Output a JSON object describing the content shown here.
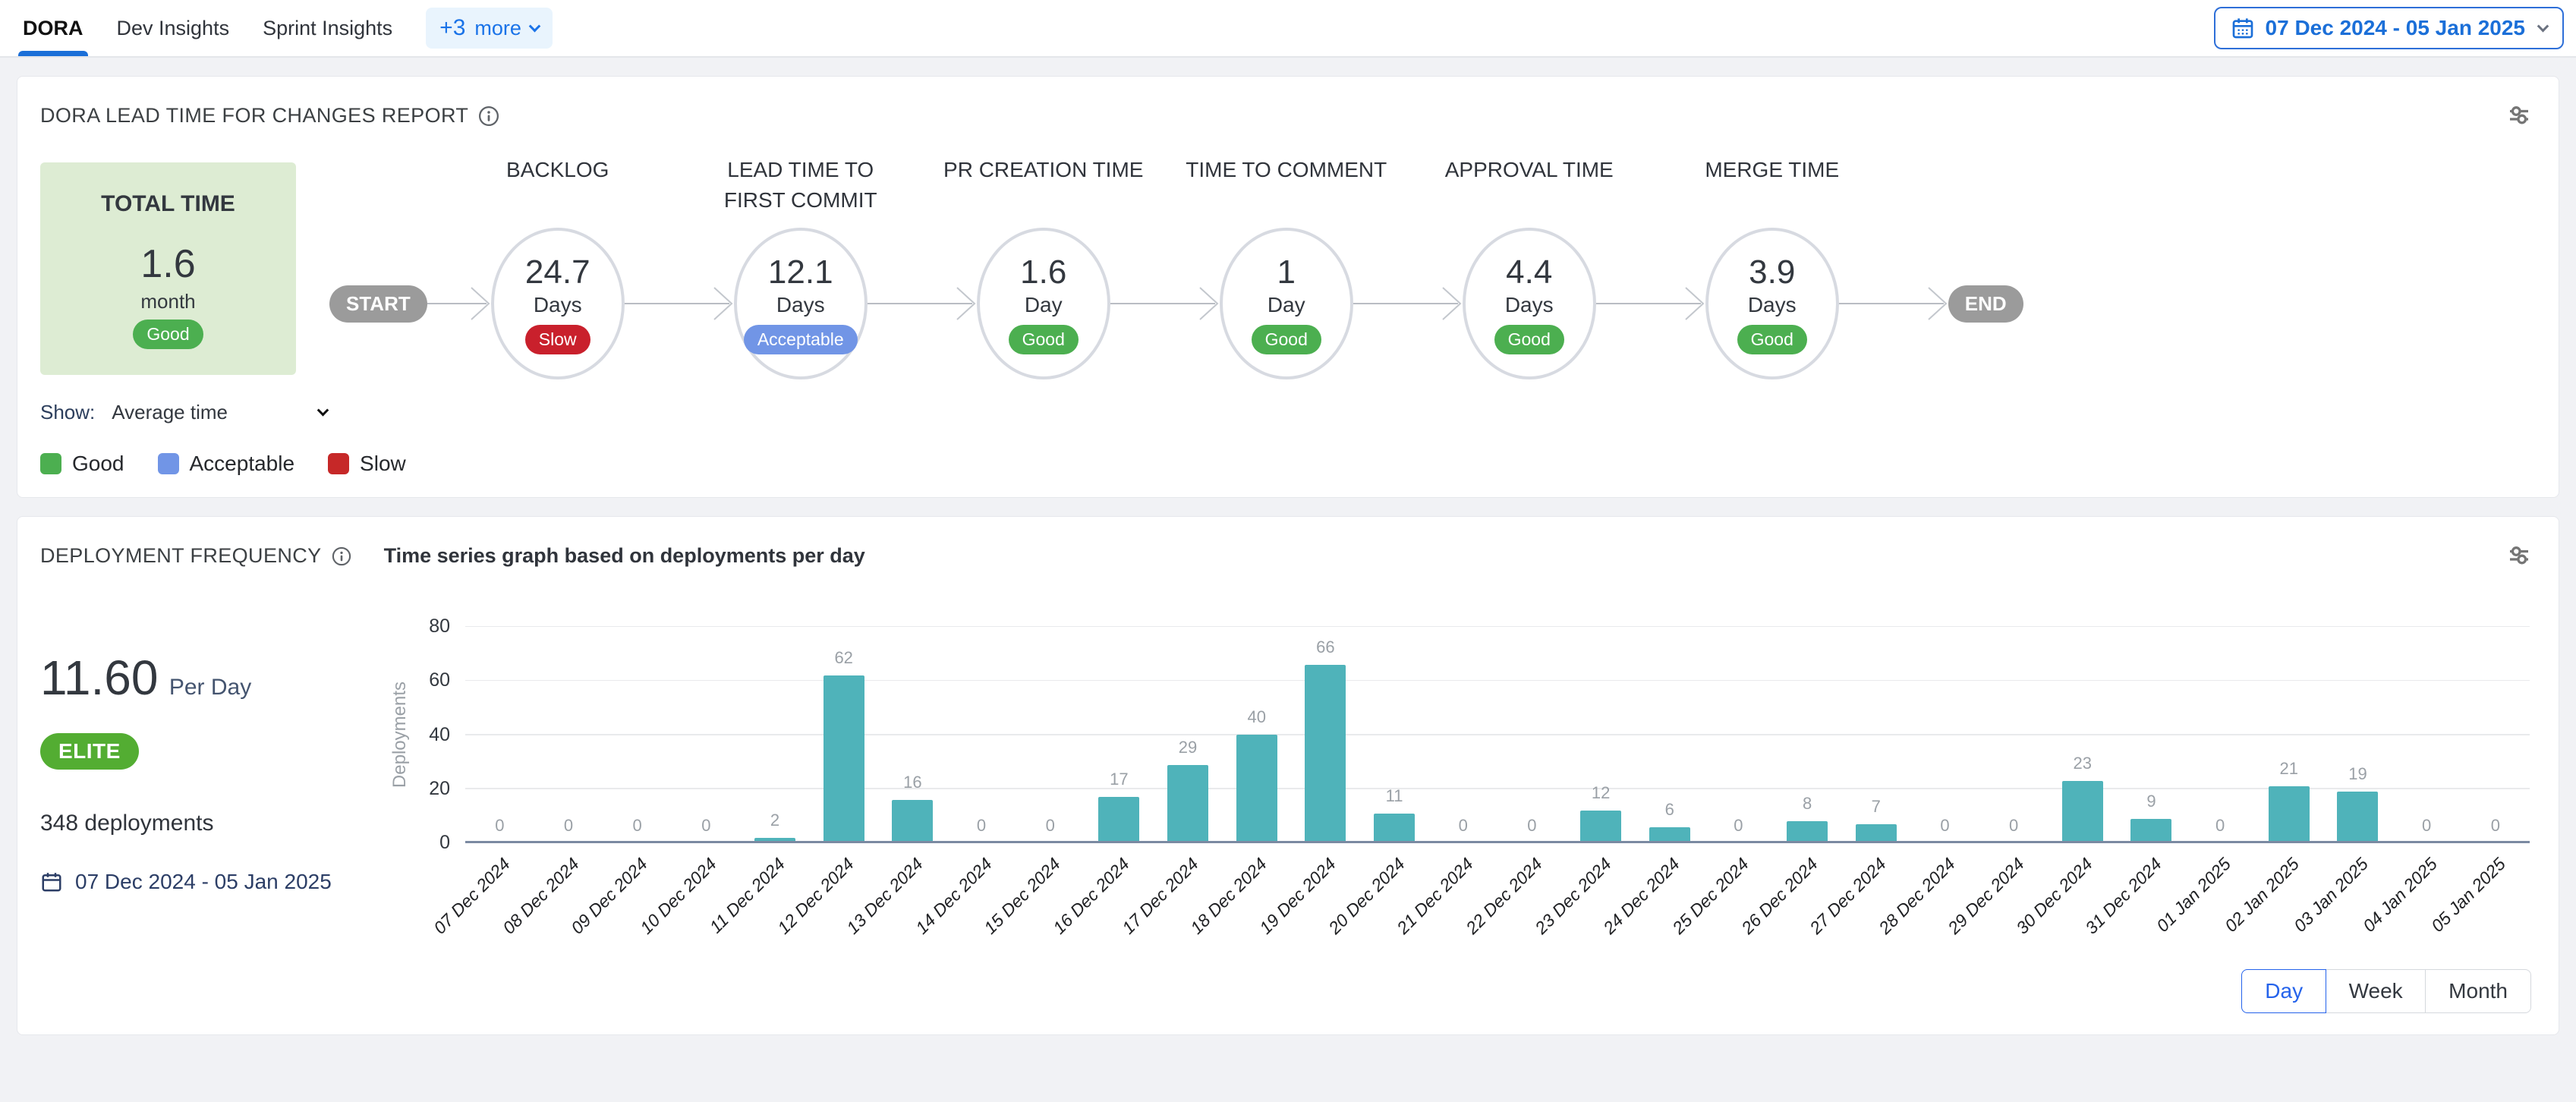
{
  "topbar": {
    "tabs": [
      {
        "label": "DORA",
        "active": true
      },
      {
        "label": "Dev Insights",
        "active": false
      },
      {
        "label": "Sprint Insights",
        "active": false
      }
    ],
    "more_label": "+3",
    "more_text": "more",
    "date_range": "07 Dec 2024 - 05 Jan 2025"
  },
  "lead_time": {
    "title": "DORA LEAD TIME FOR CHANGES REPORT",
    "total": {
      "label": "TOTAL TIME",
      "value": "1.6",
      "unit": "month",
      "status": "Good"
    },
    "start_label": "START",
    "end_label": "END",
    "stages": [
      {
        "name": "BACKLOG",
        "value": "24.7",
        "unit": "Days",
        "status": "Slow"
      },
      {
        "name": "LEAD TIME TO FIRST COMMIT",
        "value": "12.1",
        "unit": "Days",
        "status": "Acceptable"
      },
      {
        "name": "PR CREATION TIME",
        "value": "1.6",
        "unit": "Day",
        "status": "Good"
      },
      {
        "name": "TIME TO COMMENT",
        "value": "1",
        "unit": "Day",
        "status": "Good"
      },
      {
        "name": "APPROVAL TIME",
        "value": "4.4",
        "unit": "Days",
        "status": "Good"
      },
      {
        "name": "MERGE TIME",
        "value": "3.9",
        "unit": "Days",
        "status": "Good"
      }
    ],
    "show_label": "Show:",
    "show_value": "Average time",
    "legend": [
      {
        "label": "Good",
        "color": "#4caf50"
      },
      {
        "label": "Acceptable",
        "color": "#7195e6"
      },
      {
        "label": "Slow",
        "color": "#c62828"
      }
    ],
    "status_colors": {
      "Good": "#4caf50",
      "Acceptable": "#7195e6",
      "Slow": "#c9202c"
    }
  },
  "deployment": {
    "title": "DEPLOYMENT FREQUENCY",
    "subtitle": "Time series graph based on deployments per day",
    "rate_value": "11.60",
    "rate_unit": "Per Day",
    "badge": "ELITE",
    "total_deployments": "348 deployments",
    "date_range": "07 Dec 2024 - 05 Jan 2025",
    "granularity": {
      "options": [
        "Day",
        "Week",
        "Month"
      ],
      "active": "Day"
    }
  },
  "chart_data": {
    "type": "bar",
    "title": "Time series graph based on deployments per day",
    "ylabel": "Deployments",
    "ylim": [
      0,
      80
    ],
    "yticks": [
      0,
      20,
      40,
      60,
      80
    ],
    "grid": true,
    "legend_position": "none",
    "bar_color": "#4fb3ba",
    "categories": [
      "07 Dec 2024",
      "08 Dec 2024",
      "09 Dec 2024",
      "10 Dec 2024",
      "11 Dec 2024",
      "12 Dec 2024",
      "13 Dec 2024",
      "14 Dec 2024",
      "15 Dec 2024",
      "16 Dec 2024",
      "17 Dec 2024",
      "18 Dec 2024",
      "19 Dec 2024",
      "20 Dec 2024",
      "21 Dec 2024",
      "22 Dec 2024",
      "23 Dec 2024",
      "24 Dec 2024",
      "25 Dec 2024",
      "26 Dec 2024",
      "27 Dec 2024",
      "28 Dec 2024",
      "29 Dec 2024",
      "30 Dec 2024",
      "31 Dec 2024",
      "01 Jan 2025",
      "02 Jan 2025",
      "03 Jan 2025",
      "04 Jan 2025",
      "05 Jan 2025"
    ],
    "values": [
      0,
      0,
      0,
      0,
      2,
      62,
      16,
      0,
      0,
      17,
      29,
      40,
      66,
      11,
      0,
      0,
      12,
      6,
      0,
      8,
      7,
      0,
      0,
      23,
      9,
      0,
      21,
      19,
      0,
      0
    ]
  }
}
